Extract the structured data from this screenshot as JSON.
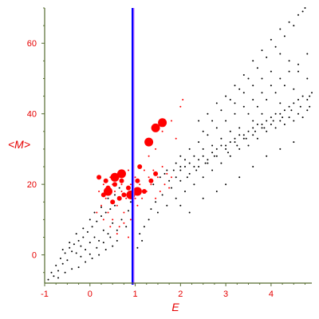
{
  "chart_data": {
    "type": "scatter",
    "title": "",
    "xlabel": "E",
    "ylabel": "<M>",
    "xlim": [
      -1,
      4.9
    ],
    "ylim": [
      -8,
      70
    ],
    "xticks": [
      -1,
      0,
      1,
      2,
      3,
      4
    ],
    "yticks": [
      0,
      20,
      40,
      60
    ],
    "grid": false,
    "legend": "none",
    "colors": {
      "axis": "#556b2f",
      "tick_label": "#e60000",
      "band_light": "#b060ff",
      "band_dark": "#0000ff",
      "series_black": "#000000",
      "series_red": "#ff0000"
    },
    "vertical_band": {
      "x_from": 0.92,
      "x_to": 0.98
    },
    "series": [
      {
        "color": "#000000",
        "marker_size": "small",
        "points": [
          [
            -0.92,
            -7
          ],
          [
            -0.85,
            -5
          ],
          [
            -0.8,
            -6
          ],
          [
            -0.75,
            -3
          ],
          [
            -0.7,
            -4.5
          ],
          [
            -0.65,
            -1
          ],
          [
            -0.6,
            -2.5
          ],
          [
            -0.55,
            0.5
          ],
          [
            -0.5,
            -1.5
          ],
          [
            -0.45,
            2
          ],
          [
            -0.4,
            1
          ],
          [
            -0.35,
            3
          ],
          [
            -0.3,
            0.5
          ],
          [
            -0.25,
            4
          ],
          [
            -0.2,
            2.5
          ],
          [
            -0.15,
            5
          ],
          [
            -0.1,
            1.5
          ],
          [
            -0.05,
            6.5
          ],
          [
            0.0,
            3.5
          ],
          [
            0.05,
            8
          ],
          [
            0.1,
            5
          ],
          [
            0.15,
            9.5
          ],
          [
            0.2,
            4
          ],
          [
            0.25,
            11
          ],
          [
            0.3,
            7
          ],
          [
            0.35,
            12
          ],
          [
            0.4,
            6
          ],
          [
            0.45,
            13
          ],
          [
            0.5,
            9
          ],
          [
            0.55,
            14
          ],
          [
            -0.7,
            -6.5
          ],
          [
            -0.55,
            -5
          ],
          [
            -0.4,
            -4
          ],
          [
            -0.25,
            -3.5
          ],
          [
            -0.1,
            -2
          ],
          [
            0.05,
            -1
          ],
          [
            0.2,
            0
          ],
          [
            0.35,
            1.5
          ],
          [
            0.5,
            2.5
          ],
          [
            0.6,
            4
          ],
          [
            -0.2,
            -0.5
          ],
          [
            0.0,
            0.2
          ],
          [
            0.15,
            2
          ],
          [
            0.3,
            3.5
          ],
          [
            0.45,
            5
          ],
          [
            0.6,
            7
          ],
          [
            0.7,
            10
          ],
          [
            0.8,
            8
          ],
          [
            0.85,
            12.5
          ],
          [
            0.9,
            15
          ],
          [
            -0.6,
            1.5
          ],
          [
            -0.45,
            3.5
          ],
          [
            -0.3,
            6
          ],
          [
            -0.15,
            7.5
          ],
          [
            0.0,
            10
          ],
          [
            0.1,
            12
          ],
          [
            0.25,
            13.5
          ],
          [
            0.4,
            16
          ],
          [
            0.55,
            17
          ],
          [
            0.65,
            19
          ],
          [
            1.05,
            2
          ],
          [
            1.1,
            6
          ],
          [
            1.15,
            4
          ],
          [
            1.2,
            8
          ],
          [
            1.3,
            10
          ],
          [
            1.35,
            13
          ],
          [
            1.45,
            15
          ],
          [
            1.5,
            12
          ],
          [
            1.6,
            17
          ],
          [
            1.7,
            14
          ],
          [
            1.8,
            19
          ],
          [
            1.9,
            16
          ],
          [
            2.0,
            21
          ],
          [
            2.1,
            18
          ],
          [
            2.2,
            23
          ],
          [
            2.3,
            20
          ],
          [
            2.4,
            25
          ],
          [
            2.5,
            22
          ],
          [
            2.6,
            26
          ],
          [
            2.7,
            24
          ],
          [
            2.8,
            28
          ],
          [
            2.9,
            26
          ],
          [
            3.0,
            30
          ],
          [
            3.1,
            28
          ],
          [
            3.2,
            32
          ],
          [
            3.3,
            30
          ],
          [
            3.4,
            33
          ],
          [
            3.5,
            31
          ],
          [
            3.6,
            34
          ],
          [
            3.7,
            33
          ],
          [
            3.8,
            36
          ],
          [
            3.9,
            35
          ],
          [
            4.0,
            37
          ],
          [
            4.1,
            36
          ],
          [
            4.2,
            38
          ],
          [
            4.3,
            37
          ],
          [
            4.4,
            39
          ],
          [
            4.5,
            38
          ],
          [
            4.6,
            40
          ],
          [
            4.7,
            39
          ],
          [
            4.8,
            41
          ],
          [
            4.85,
            42
          ],
          [
            1.9,
            22
          ],
          [
            2.0,
            24
          ],
          [
            2.1,
            25
          ],
          [
            2.2,
            26
          ],
          [
            2.3,
            25
          ],
          [
            2.4,
            27
          ],
          [
            2.5,
            28
          ],
          [
            2.6,
            27
          ],
          [
            2.7,
            29
          ],
          [
            2.8,
            30
          ],
          [
            2.9,
            31
          ],
          [
            3.0,
            31
          ],
          [
            3.1,
            32
          ],
          [
            3.2,
            33
          ],
          [
            3.3,
            34
          ],
          [
            3.4,
            34
          ],
          [
            3.5,
            35
          ],
          [
            3.6,
            36
          ],
          [
            3.7,
            37
          ],
          [
            3.8,
            37
          ],
          [
            3.9,
            38
          ],
          [
            4.0,
            39
          ],
          [
            4.1,
            40
          ],
          [
            4.2,
            40
          ],
          [
            4.3,
            41
          ],
          [
            4.4,
            42
          ],
          [
            4.5,
            43
          ],
          [
            4.6,
            44
          ],
          [
            2.0,
            28
          ],
          [
            2.2,
            30
          ],
          [
            2.4,
            32
          ],
          [
            2.6,
            34
          ],
          [
            2.8,
            36
          ],
          [
            3.0,
            38
          ],
          [
            3.2,
            40
          ],
          [
            3.4,
            42
          ],
          [
            3.6,
            44
          ],
          [
            3.8,
            46
          ],
          [
            4.0,
            48
          ],
          [
            4.2,
            50
          ],
          [
            4.4,
            52
          ],
          [
            4.6,
            54
          ],
          [
            4.8,
            57
          ],
          [
            2.5,
            35
          ],
          [
            2.7,
            38
          ],
          [
            2.9,
            41
          ],
          [
            3.1,
            44
          ],
          [
            3.3,
            47
          ],
          [
            3.5,
            50
          ],
          [
            3.7,
            53
          ],
          [
            3.9,
            56
          ],
          [
            4.1,
            59
          ],
          [
            4.3,
            62
          ],
          [
            4.5,
            65
          ],
          [
            4.6,
            68
          ],
          [
            4.7,
            69
          ],
          [
            4.75,
            70
          ],
          [
            4.4,
            66
          ],
          [
            3.0,
            45
          ],
          [
            3.2,
            48
          ],
          [
            3.4,
            51
          ],
          [
            3.6,
            55
          ],
          [
            3.8,
            58
          ],
          [
            4.0,
            61
          ],
          [
            4.2,
            64
          ],
          [
            2.6,
            40
          ],
          [
            2.8,
            43
          ],
          [
            2.4,
            38
          ],
          [
            3.5,
            40
          ],
          [
            3.7,
            42
          ],
          [
            3.9,
            44
          ],
          [
            4.1,
            46
          ],
          [
            4.3,
            48
          ],
          [
            4.5,
            47
          ],
          [
            4.7,
            45
          ],
          [
            4.8,
            44
          ],
          [
            4.2,
            43
          ],
          [
            3.8,
            40
          ],
          [
            3.3,
            36
          ],
          [
            3.6,
            38
          ],
          [
            3.1,
            35
          ],
          [
            2.9,
            33
          ],
          [
            2.7,
            31
          ],
          [
            2.5,
            30
          ],
          [
            2.3,
            28
          ],
          [
            2.1,
            27
          ],
          [
            1.9,
            26
          ],
          [
            1.7,
            24
          ],
          [
            2.0,
            14
          ],
          [
            2.2,
            12
          ],
          [
            2.5,
            16
          ],
          [
            2.8,
            18
          ],
          [
            3.0,
            20
          ],
          [
            3.3,
            22
          ],
          [
            3.6,
            25
          ],
          [
            3.9,
            28
          ],
          [
            4.2,
            30
          ],
          [
            4.5,
            32
          ],
          [
            1.4,
            20
          ],
          [
            1.55,
            22
          ],
          [
            1.65,
            23
          ],
          [
            1.75,
            21
          ],
          [
            1.85,
            24
          ],
          [
            2.0,
            25
          ],
          [
            2.15,
            22
          ],
          [
            2.35,
            24
          ],
          [
            2.55,
            26
          ],
          [
            2.75,
            28
          ],
          [
            3.05,
            29
          ],
          [
            3.25,
            31
          ],
          [
            3.45,
            33
          ],
          [
            3.65,
            35
          ],
          [
            3.85,
            36
          ],
          [
            4.05,
            38
          ],
          [
            4.25,
            39
          ],
          [
            4.45,
            41
          ],
          [
            4.65,
            42
          ],
          [
            4.85,
            45
          ],
          [
            4.9,
            46
          ],
          [
            4.8,
            50
          ],
          [
            4.6,
            52
          ],
          [
            4.4,
            55
          ],
          [
            4.2,
            57
          ],
          [
            4.0,
            52
          ],
          [
            3.8,
            50
          ],
          [
            3.6,
            48
          ],
          [
            3.4,
            46
          ],
          [
            3.2,
            43
          ]
        ]
      },
      {
        "color": "#ff0000",
        "marker_size": "small",
        "points": [
          [
            0.2,
            18
          ],
          [
            0.25,
            14
          ],
          [
            0.3,
            20
          ],
          [
            0.35,
            16
          ],
          [
            0.4,
            12
          ],
          [
            0.45,
            22
          ],
          [
            0.5,
            10
          ],
          [
            0.55,
            18
          ],
          [
            0.6,
            14
          ],
          [
            0.65,
            8
          ],
          [
            0.7,
            20
          ],
          [
            0.75,
            12
          ],
          [
            0.8,
            16
          ],
          [
            0.85,
            24
          ],
          [
            0.9,
            10
          ],
          [
            0.95,
            18
          ],
          [
            1.0,
            22
          ],
          [
            1.05,
            14
          ],
          [
            1.1,
            20
          ],
          [
            1.15,
            16
          ],
          [
            1.2,
            24
          ],
          [
            1.25,
            18
          ],
          [
            1.3,
            22
          ],
          [
            1.35,
            20
          ],
          [
            1.4,
            24
          ],
          [
            1.45,
            16
          ],
          [
            1.5,
            22
          ],
          [
            1.55,
            18
          ],
          [
            1.6,
            25
          ],
          [
            1.65,
            20
          ],
          [
            1.7,
            23
          ],
          [
            1.75,
            19
          ],
          [
            1.8,
            22
          ],
          [
            1.3,
            28
          ],
          [
            1.45,
            30
          ],
          [
            1.6,
            35
          ],
          [
            1.8,
            38
          ],
          [
            1.9,
            33
          ],
          [
            2.0,
            42
          ],
          [
            2.05,
            44
          ],
          [
            0.15,
            12
          ],
          [
            0.3,
            10
          ],
          [
            0.45,
            8
          ],
          [
            0.6,
            6
          ],
          [
            0.75,
            9
          ],
          [
            0.85,
            5
          ],
          [
            0.5,
            20
          ],
          [
            0.7,
            18
          ],
          [
            0.9,
            20
          ],
          [
            1.0,
            16
          ]
        ]
      },
      {
        "color": "#ff0000",
        "marker_size": "medium",
        "points": [
          [
            0.2,
            22
          ],
          [
            0.35,
            21
          ],
          [
            0.4,
            19
          ],
          [
            0.55,
            20
          ],
          [
            0.7,
            21
          ],
          [
            0.75,
            17
          ],
          [
            0.85,
            19
          ],
          [
            1.05,
            21
          ],
          [
            1.2,
            18
          ],
          [
            1.35,
            21
          ],
          [
            1.45,
            23
          ],
          [
            0.65,
            16
          ],
          [
            0.5,
            15
          ],
          [
            1.1,
            25
          ],
          [
            0.3,
            17
          ]
        ]
      },
      {
        "color": "#ff0000",
        "marker_size": "large",
        "points": [
          [
            0.4,
            18
          ],
          [
            0.55,
            22
          ],
          [
            0.7,
            23
          ],
          [
            0.9,
            17
          ],
          [
            1.05,
            18
          ],
          [
            1.3,
            32
          ],
          [
            1.45,
            36
          ],
          [
            1.6,
            37.5
          ]
        ]
      }
    ]
  }
}
